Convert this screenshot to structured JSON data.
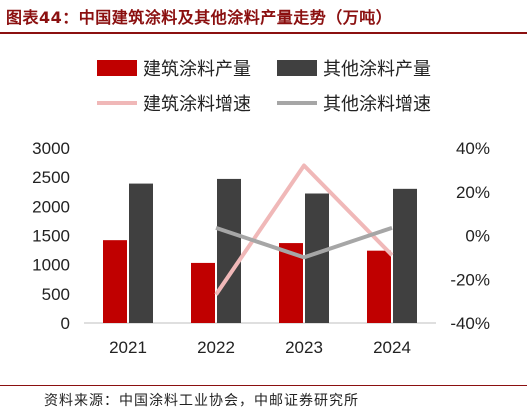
{
  "title": "图表44：中国建筑涂料及其他涂料产量走势（万吨）",
  "source": "资料来源：中国涂料工业协会，中邮证券研究所",
  "colors": {
    "bar_arch": "#c00000",
    "bar_other": "#404040",
    "line_arch": "#f0b8b8",
    "line_other": "#a6a6a6",
    "title": "#8b1010"
  },
  "chart_data": {
    "type": "bar",
    "categories": [
      "2021",
      "2022",
      "2023",
      "2024"
    ],
    "series": [
      {
        "name": "建筑涂料产量",
        "kind": "bar",
        "axis": "left",
        "values": [
          1420,
          1030,
          1370,
          1240
        ]
      },
      {
        "name": "其他涂料产量",
        "kind": "bar",
        "axis": "left",
        "values": [
          2390,
          2470,
          2220,
          2300
        ]
      },
      {
        "name": "建筑涂料增速",
        "kind": "line",
        "axis": "right",
        "values": [
          null,
          -27,
          32,
          -9
        ]
      },
      {
        "name": "其他涂料增速",
        "kind": "line",
        "axis": "right",
        "values": [
          null,
          3.5,
          -10,
          3.5
        ]
      }
    ],
    "y_left": {
      "min": 0,
      "max": 3000,
      "ticks": [
        "0",
        "500",
        "1000",
        "1500",
        "2000",
        "2500",
        "3000"
      ]
    },
    "y_right": {
      "min": -40,
      "max": 40,
      "ticks": [
        "-40%",
        "-20%",
        "0%",
        "20%",
        "40%"
      ]
    },
    "legend_position": "top",
    "grid": false
  }
}
